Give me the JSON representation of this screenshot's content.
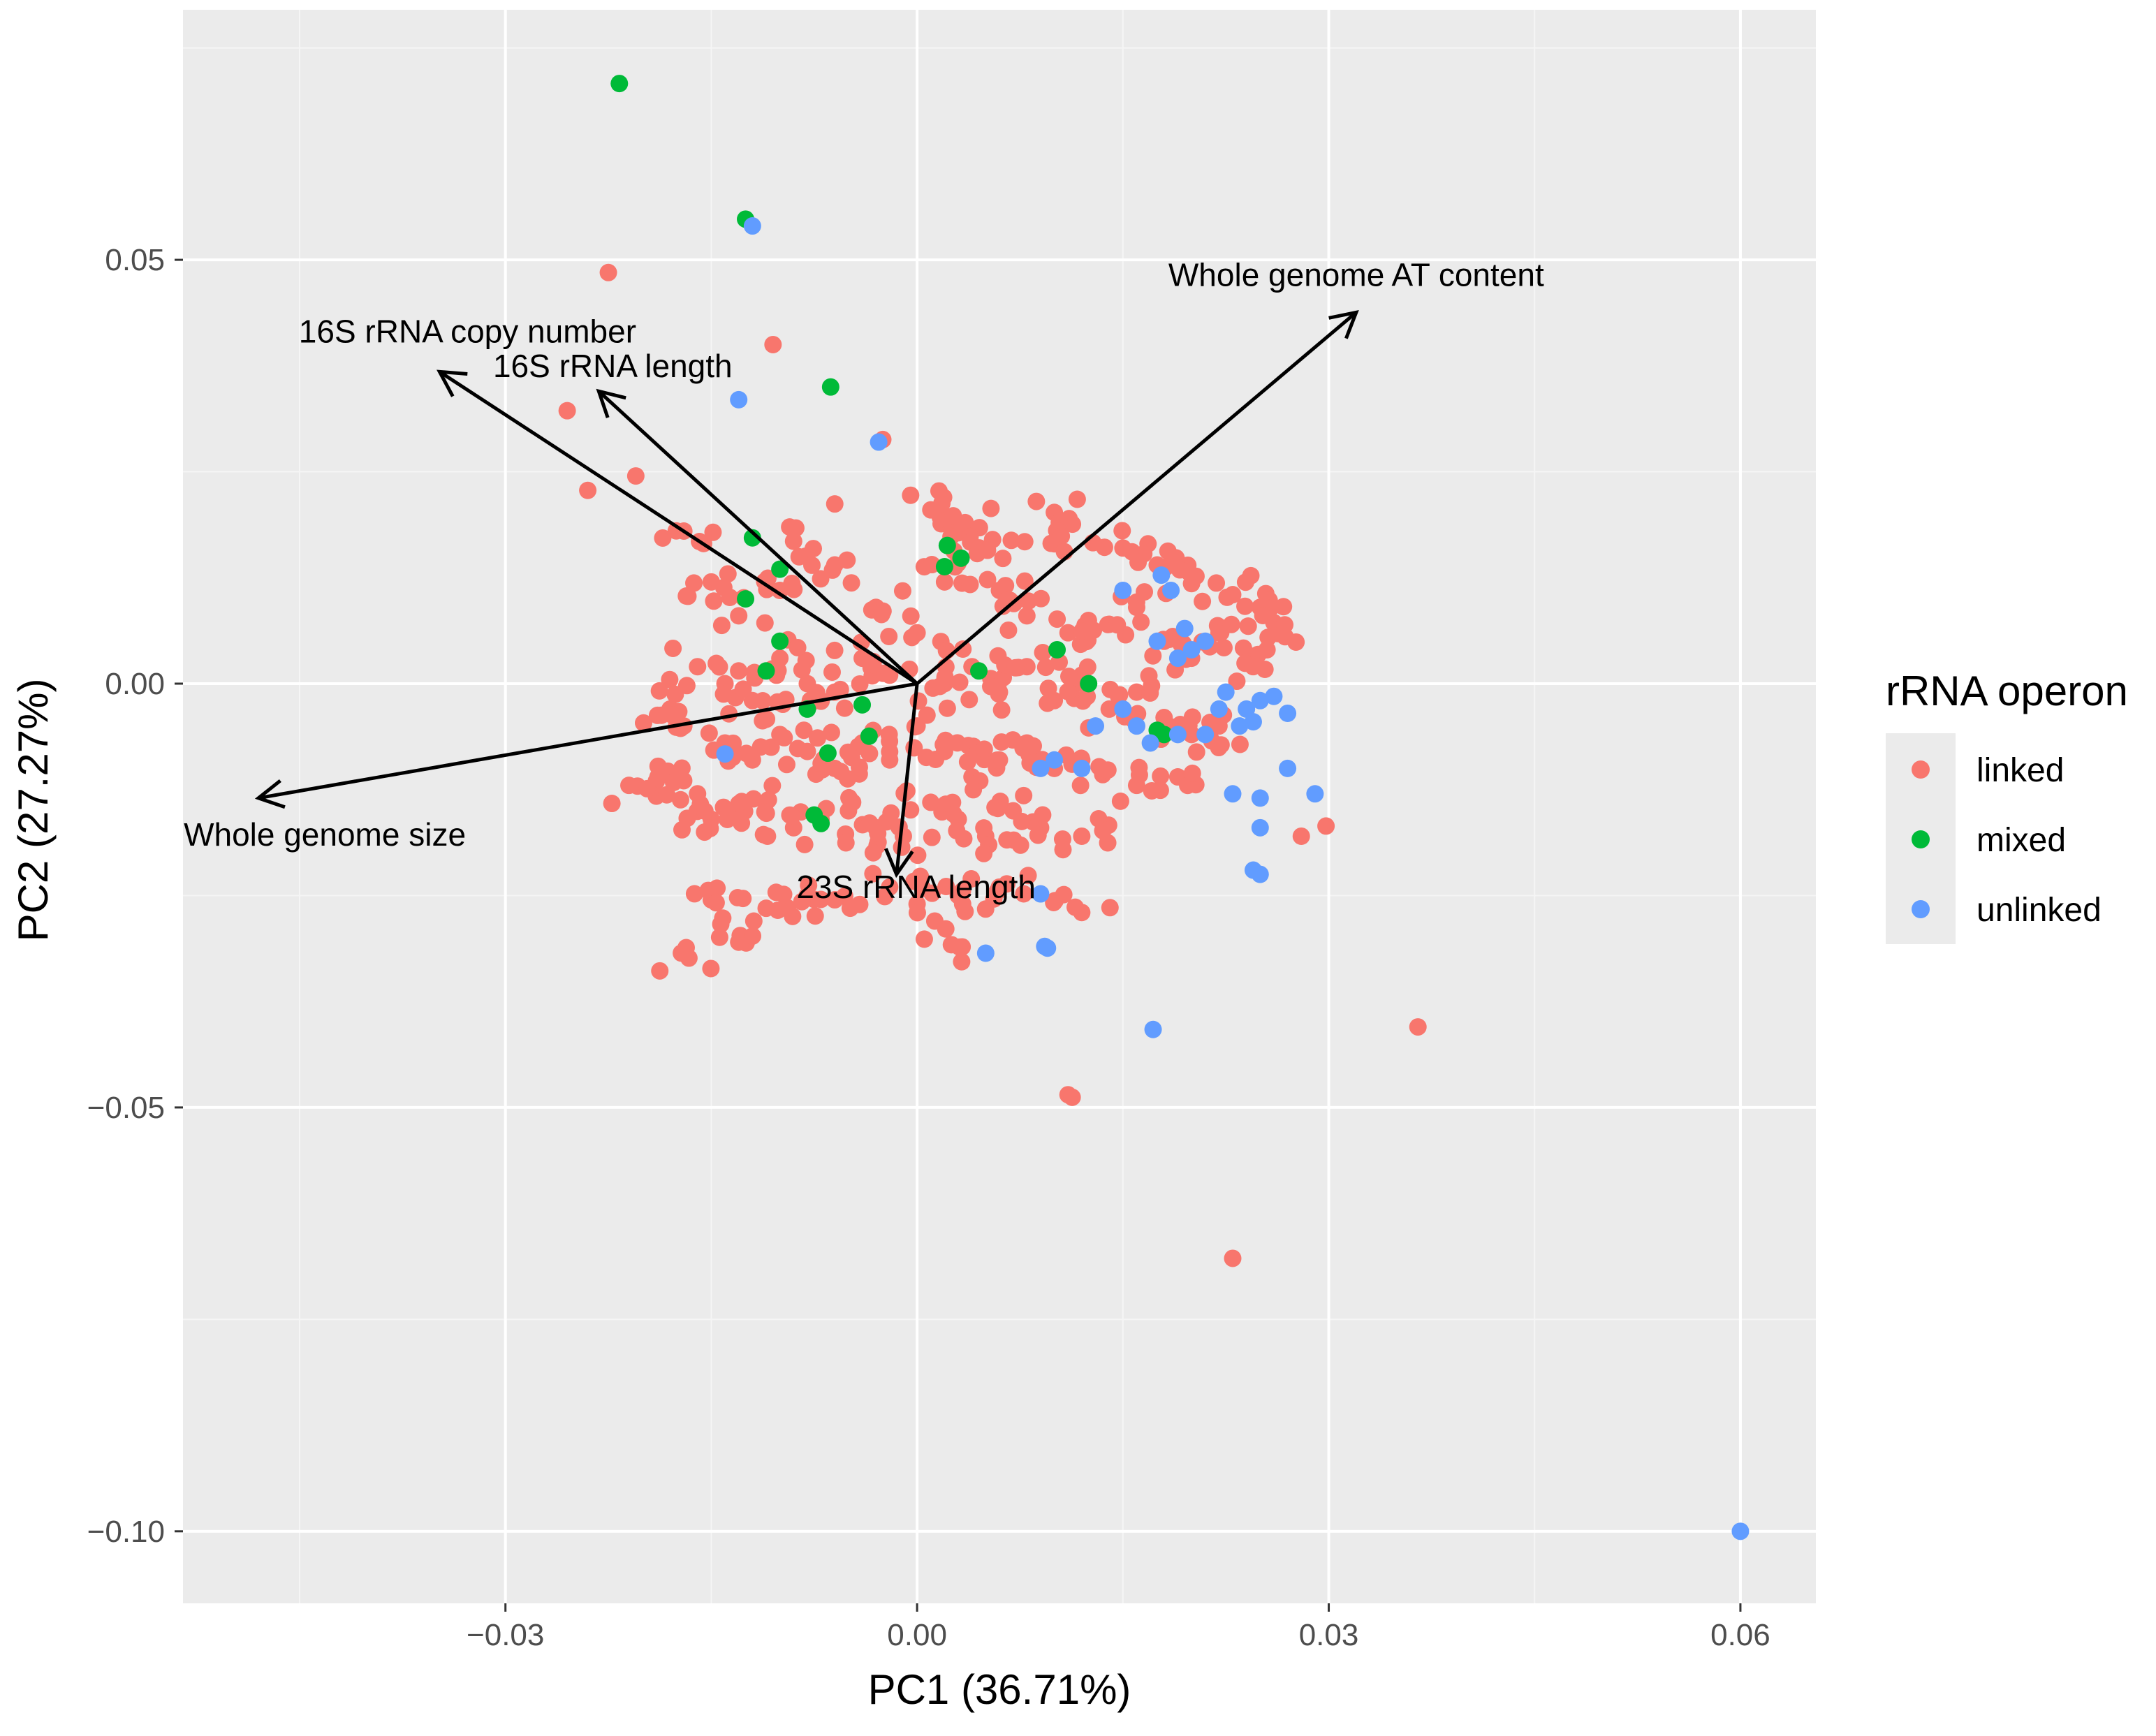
{
  "chart_data": {
    "type": "scatter",
    "subtype": "pca-biplot",
    "title": "",
    "xlabel": "PC1 (36.71%)",
    "ylabel": "PC2 (27.27%)",
    "xlim": [
      -0.0535,
      0.0655
    ],
    "ylim": [
      -0.1085,
      0.0795
    ],
    "x_ticks": [
      -0.03,
      0.0,
      0.03,
      0.06
    ],
    "x_tick_labels": [
      "−0.03",
      "0.00",
      "0.03",
      "0.06"
    ],
    "y_ticks": [
      0.05,
      0.0,
      -0.05,
      -0.1
    ],
    "y_tick_labels": [
      "0.05",
      "0.00",
      "−0.05",
      "−0.10"
    ],
    "grid": true,
    "legend": {
      "title": "rRNA operon",
      "position": "right",
      "entries": [
        {
          "name": "linked",
          "color": "#F8766D"
        },
        {
          "name": "mixed",
          "color": "#00BA38"
        },
        {
          "name": "unlinked",
          "color": "#619CFF"
        }
      ]
    },
    "series": [
      {
        "name": "linked",
        "color": "#F8766D",
        "points": [
          [
            -0.0225,
            0.0485
          ],
          [
            -0.0105,
            0.04
          ],
          [
            -0.0255,
            0.0322
          ],
          [
            -0.0025,
            0.0288
          ],
          [
            -0.024,
            0.0228
          ],
          [
            -0.0205,
            0.0245
          ],
          [
            -0.006,
            0.0212
          ],
          [
            0.001,
            0.0205
          ],
          [
            0.01,
            0.0202
          ],
          [
            0.0035,
            0.019
          ],
          [
            -0.017,
            0.018
          ],
          [
            -0.009,
            0.0168
          ],
          [
            0.003,
            0.0178
          ],
          [
            0.0055,
            0.017
          ],
          [
            0.01,
            0.0165
          ],
          [
            0.015,
            0.016
          ],
          [
            0.0175,
            0.014
          ],
          [
            0.02,
            0.0118
          ],
          [
            0.023,
            0.0105
          ],
          [
            0.025,
            0.009
          ],
          [
            0.026,
            0.0072
          ],
          [
            0.0255,
            0.004
          ],
          [
            0.024,
            0.0025
          ],
          [
            -0.015,
            0.012
          ],
          [
            -0.013,
            0.008
          ],
          [
            -0.01,
            0.011
          ],
          [
            -0.006,
            0.014
          ],
          [
            -0.003,
            0.009
          ],
          [
            0.0,
            0.006
          ],
          [
            0.002,
            0.012
          ],
          [
            0.006,
            0.011
          ],
          [
            0.008,
            0.008
          ],
          [
            0.011,
            0.006
          ],
          [
            0.014,
            0.007
          ],
          [
            0.016,
            0.009
          ],
          [
            0.018,
            0.005
          ],
          [
            0.02,
            0.003
          ],
          [
            0.022,
            0.006
          ],
          [
            -0.016,
            0.002
          ],
          [
            -0.014,
            0.0
          ],
          [
            -0.012,
            -0.002
          ],
          [
            -0.01,
            0.003
          ],
          [
            -0.008,
            0.0
          ],
          [
            -0.006,
            -0.001
          ],
          [
            -0.004,
            0.003
          ],
          [
            -0.002,
            0.001
          ],
          [
            0.002,
            0.0
          ],
          [
            0.004,
            0.002
          ],
          [
            0.006,
            -0.001
          ],
          [
            0.008,
            0.002
          ],
          [
            0.01,
            -0.002
          ],
          [
            0.012,
            0.001
          ],
          [
            0.014,
            -0.003
          ],
          [
            0.016,
            -0.001
          ],
          [
            0.018,
            -0.004
          ],
          [
            0.02,
            -0.006
          ],
          [
            0.022,
            -0.005
          ],
          [
            -0.018,
            -0.003
          ],
          [
            -0.017,
            -0.005
          ],
          [
            -0.014,
            -0.007
          ],
          [
            -0.012,
            -0.009
          ],
          [
            -0.01,
            -0.006
          ],
          [
            -0.008,
            -0.008
          ],
          [
            -0.006,
            -0.01
          ],
          [
            -0.004,
            -0.007
          ],
          [
            -0.002,
            -0.009
          ],
          [
            0.0,
            -0.005
          ],
          [
            0.002,
            -0.008
          ],
          [
            0.004,
            -0.011
          ],
          [
            0.006,
            -0.009
          ],
          [
            0.008,
            -0.007
          ],
          [
            0.01,
            -0.01
          ],
          [
            0.012,
            -0.009
          ],
          [
            0.016,
            -0.012
          ],
          [
            0.019,
            -0.011
          ],
          [
            -0.021,
            -0.012
          ],
          [
            -0.019,
            -0.0115
          ],
          [
            -0.016,
            -0.013
          ],
          [
            -0.015,
            -0.016
          ],
          [
            -0.013,
            -0.015
          ],
          [
            -0.011,
            -0.014
          ],
          [
            -0.009,
            -0.017
          ],
          [
            -0.007,
            -0.016
          ],
          [
            -0.005,
            -0.015
          ],
          [
            -0.003,
            -0.017
          ],
          [
            -0.001,
            -0.018
          ],
          [
            0.001,
            -0.014
          ],
          [
            0.003,
            -0.016
          ],
          [
            0.005,
            -0.018
          ],
          [
            0.007,
            -0.015
          ],
          [
            0.009,
            -0.017
          ],
          [
            0.012,
            -0.018
          ],
          [
            -0.015,
            -0.0255
          ],
          [
            -0.011,
            -0.0265
          ],
          [
            -0.008,
            -0.025
          ],
          [
            -0.006,
            -0.0255
          ],
          [
            -0.002,
            -0.024
          ],
          [
            0.0,
            -0.026
          ],
          [
            0.003,
            -0.025
          ],
          [
            0.006,
            -0.024
          ],
          [
            0.012,
            -0.027
          ],
          [
            -0.017,
            -0.0318
          ],
          [
            -0.013,
            -0.0305
          ],
          [
            0.0025,
            -0.0308
          ],
          [
            0.011,
            -0.0485
          ],
          [
            0.0113,
            -0.0488
          ],
          [
            0.0365,
            -0.0405
          ],
          [
            0.023,
            -0.0678
          ],
          [
            0.028,
            -0.018
          ],
          [
            0.0298,
            -0.0168
          ]
        ]
      },
      {
        "name": "mixed",
        "color": "#00BA38",
        "points": [
          [
            -0.0217,
            0.0708
          ],
          [
            -0.0125,
            0.0548
          ],
          [
            -0.0063,
            0.035
          ],
          [
            0.0022,
            0.0163
          ],
          [
            0.0032,
            0.0148
          ],
          [
            0.002,
            0.0138
          ],
          [
            -0.012,
            0.0172
          ],
          [
            -0.01,
            0.0135
          ],
          [
            -0.0125,
            0.01
          ],
          [
            -0.01,
            0.005
          ],
          [
            0.0045,
            0.0015
          ],
          [
            0.0102,
            0.004
          ],
          [
            -0.008,
            -0.003
          ],
          [
            -0.004,
            -0.0025
          ],
          [
            -0.0035,
            -0.0062
          ],
          [
            -0.0065,
            -0.0082
          ],
          [
            -0.0075,
            -0.0155
          ],
          [
            -0.007,
            -0.0165
          ],
          [
            0.0175,
            -0.0055
          ],
          [
            0.018,
            -0.006
          ],
          [
            0.0125,
            0.0
          ],
          [
            -0.011,
            0.0015
          ]
        ]
      },
      {
        "name": "unlinked",
        "color": "#619CFF",
        "points": [
          [
            -0.012,
            0.054
          ],
          [
            -0.013,
            0.0335
          ],
          [
            -0.0028,
            0.0285
          ],
          [
            0.0178,
            0.0128
          ],
          [
            0.015,
            0.011
          ],
          [
            0.0175,
            0.005
          ],
          [
            0.019,
            0.003
          ],
          [
            0.02,
            0.004
          ],
          [
            0.0225,
            -0.001
          ],
          [
            0.024,
            -0.003
          ],
          [
            0.025,
            -0.002
          ],
          [
            0.026,
            -0.0015
          ],
          [
            0.027,
            -0.0035
          ],
          [
            0.0245,
            -0.0045
          ],
          [
            0.0235,
            -0.005
          ],
          [
            0.022,
            -0.003
          ],
          [
            0.021,
            -0.006
          ],
          [
            0.019,
            -0.006
          ],
          [
            0.017,
            -0.007
          ],
          [
            0.016,
            -0.005
          ],
          [
            0.015,
            -0.003
          ],
          [
            0.013,
            -0.005
          ],
          [
            0.012,
            -0.01
          ],
          [
            0.01,
            -0.009
          ],
          [
            0.009,
            -0.01
          ],
          [
            0.027,
            -0.01
          ],
          [
            0.029,
            -0.013
          ],
          [
            0.023,
            -0.013
          ],
          [
            0.025,
            -0.0135
          ],
          [
            0.025,
            -0.017
          ],
          [
            0.0245,
            -0.022
          ],
          [
            0.025,
            -0.0225
          ],
          [
            -0.014,
            -0.0083
          ],
          [
            0.009,
            -0.0248
          ],
          [
            0.005,
            -0.0318
          ],
          [
            0.0093,
            -0.031
          ],
          [
            0.0095,
            -0.0312
          ],
          [
            0.0172,
            -0.0408
          ],
          [
            0.06,
            -0.1
          ],
          [
            0.0185,
            0.011
          ],
          [
            0.0195,
            0.0065
          ],
          [
            0.021,
            0.005
          ]
        ]
      }
    ],
    "loadings": [
      {
        "label": "Whole genome AT content",
        "x": 0.032,
        "y": 0.0438
      },
      {
        "label": "16S rRNA copy  number",
        "x": -0.0348,
        "y": 0.0368
      },
      {
        "label": "16S rRNA length",
        "x": -0.0232,
        "y": 0.0345
      },
      {
        "label": "Whole genome size",
        "x": -0.048,
        "y": -0.0135
      },
      {
        "label": "23S rRNA length",
        "x": -0.0015,
        "y": -0.0225
      }
    ],
    "loading_origin": [
      0.0,
      0.0
    ]
  }
}
